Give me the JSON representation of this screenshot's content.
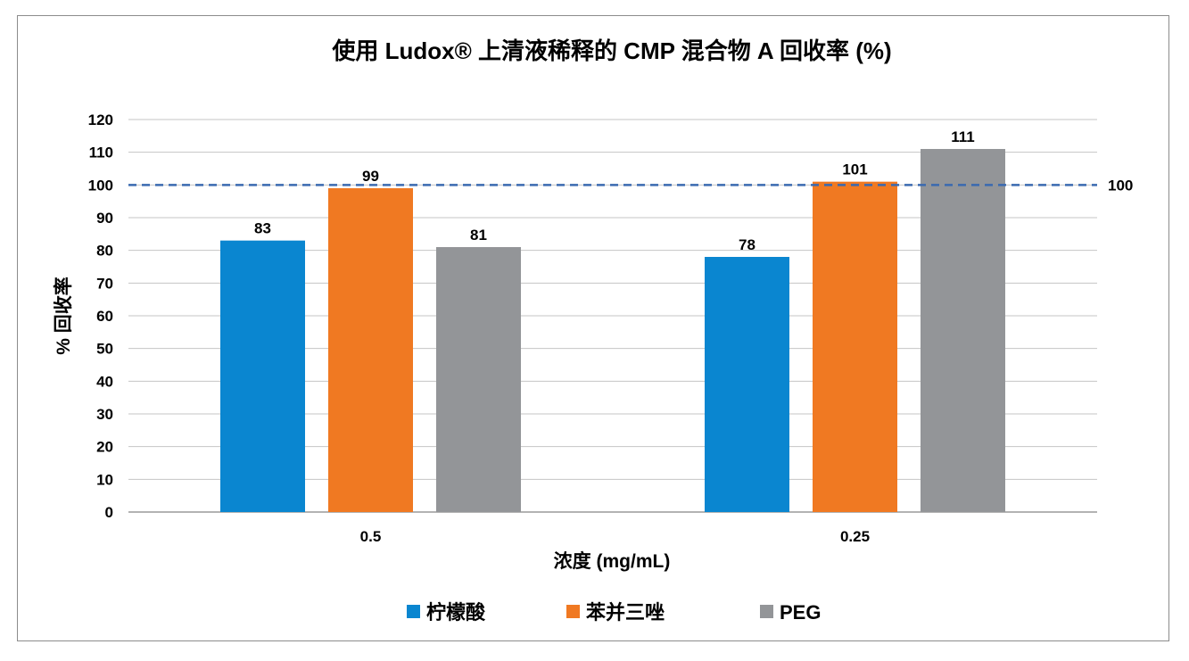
{
  "chart_data": {
    "type": "bar",
    "title": "使用 Ludox® 上清液稀释的 CMP 混合物 A 回收率 (%)",
    "xlabel": "浓度 (mg/mL)",
    "ylabel": "% 回收率",
    "categories": [
      "0.5",
      "0.25"
    ],
    "series": [
      {
        "name": "柠檬酸",
        "values": [
          83,
          78
        ],
        "color": "#0a86d0"
      },
      {
        "name": "苯并三唑",
        "values": [
          99,
          101
        ],
        "color": "#f07922"
      },
      {
        "name": "PEG",
        "values": [
          81,
          111
        ],
        "color": "#939598"
      }
    ],
    "ylim": [
      0,
      120
    ],
    "yticks": [
      0,
      10,
      20,
      30,
      40,
      50,
      60,
      70,
      80,
      90,
      100,
      110,
      120
    ],
    "grid": true,
    "reference_line": {
      "value": 100,
      "label": "100",
      "color": "#3a6ab0"
    },
    "legend": "bottom"
  }
}
